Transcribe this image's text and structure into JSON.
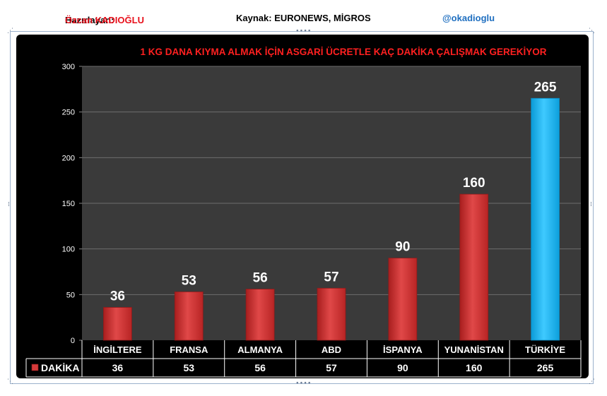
{
  "header": {
    "prepared_label": "Hazırlayan:",
    "prepared_name": "Özcan KADIOĞLU",
    "source_label": "Kaynak: EURONEWS, MİGROS",
    "handle": "@okadioglu"
  },
  "chart_data": {
    "type": "bar",
    "title": "1 KG DANA KIYMA ALMAK İÇİN ASGARİ ÜCRETLE KAÇ DAKİKA ÇALIŞMAK GEREKİYOR",
    "categories": [
      "İNGİLTERE",
      "FRANSA",
      "ALMANYA",
      "ABD",
      "İSPANYA",
      "YUNANİSTAN",
      "TÜRKİYE"
    ],
    "series": [
      {
        "name": "DAKİKA",
        "values": [
          36,
          53,
          56,
          57,
          90,
          160,
          265
        ]
      }
    ],
    "value_labels": [
      "36",
      "53",
      "56",
      "57",
      "90",
      "160",
      "265"
    ],
    "table_values": [
      "36",
      "53",
      "56",
      "57",
      "90",
      "160",
      "265"
    ],
    "y_ticks": [
      "0",
      "50",
      "100",
      "150",
      "200",
      "250",
      "300"
    ],
    "ylim": [
      0,
      300
    ],
    "grid": true,
    "legend": "data-table",
    "colors": {
      "bar": "#d63a3a",
      "highlight_bar": "#19b6f0",
      "title": "#ff2020",
      "plot_bg": "#3a3a3a",
      "panel_bg": "#000000"
    }
  }
}
